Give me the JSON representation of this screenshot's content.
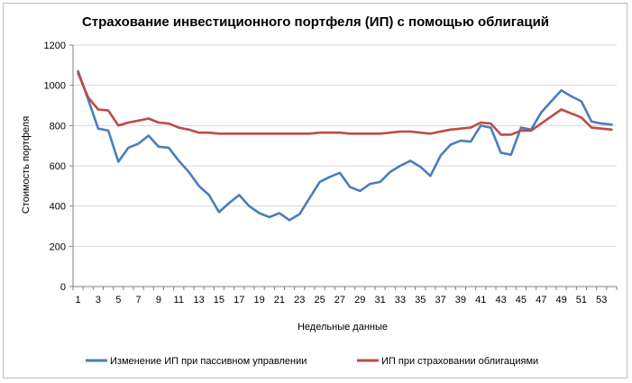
{
  "colors": {
    "series1": "#4a7ebb",
    "series2": "#be4b48",
    "grid": "#d9d9d9",
    "axis": "#808080"
  },
  "chart_data": {
    "type": "line",
    "title": "Страхование инвестиционного портфеля (ИП) с помощью облигаций",
    "xlabel": "Недельные данные",
    "ylabel": "Стоимость портфеля",
    "ylim": [
      0,
      1200
    ],
    "yticks": [
      "0",
      "200",
      "400",
      "600",
      "800",
      "1000",
      "1200"
    ],
    "x_tick_labels": [
      "1",
      "3",
      "5",
      "7",
      "9",
      "11",
      "13",
      "15",
      "17",
      "19",
      "21",
      "23",
      "25",
      "27",
      "29",
      "31",
      "33",
      "35",
      "37",
      "39",
      "41",
      "43",
      "45",
      "47",
      "49",
      "51",
      "53"
    ],
    "grid": true,
    "legend": "bottom",
    "x": [
      1,
      2,
      3,
      4,
      5,
      6,
      7,
      8,
      9,
      10,
      11,
      12,
      13,
      14,
      15,
      16,
      17,
      18,
      19,
      20,
      21,
      22,
      23,
      24,
      25,
      26,
      27,
      28,
      29,
      30,
      31,
      32,
      33,
      34,
      35,
      36,
      37,
      38,
      39,
      40,
      41,
      42,
      43,
      44,
      45,
      46,
      47,
      48,
      49,
      50,
      51,
      52,
      53,
      54
    ],
    "series": [
      {
        "name": "Изменение ИП при пассивном управлении",
        "values": [
          1070,
          930,
          785,
          775,
          620,
          690,
          710,
          750,
          695,
          690,
          625,
          570,
          500,
          455,
          370,
          415,
          455,
          400,
          365,
          345,
          365,
          330,
          360,
          440,
          520,
          545,
          565,
          495,
          475,
          510,
          520,
          570,
          600,
          625,
          595,
          550,
          650,
          705,
          725,
          720,
          800,
          790,
          665,
          655,
          790,
          780,
          865,
          920,
          975,
          945,
          920,
          820,
          810,
          805
        ]
      },
      {
        "name": "ИП при страховании облигациями",
        "values": [
          1060,
          940,
          880,
          875,
          800,
          815,
          825,
          835,
          815,
          810,
          790,
          780,
          765,
          765,
          760,
          760,
          760,
          760,
          760,
          760,
          760,
          760,
          760,
          760,
          765,
          765,
          765,
          760,
          760,
          760,
          760,
          765,
          770,
          770,
          765,
          760,
          770,
          780,
          785,
          790,
          815,
          810,
          755,
          755,
          775,
          775,
          810,
          845,
          880,
          860,
          840,
          790,
          785,
          780
        ]
      }
    ]
  }
}
